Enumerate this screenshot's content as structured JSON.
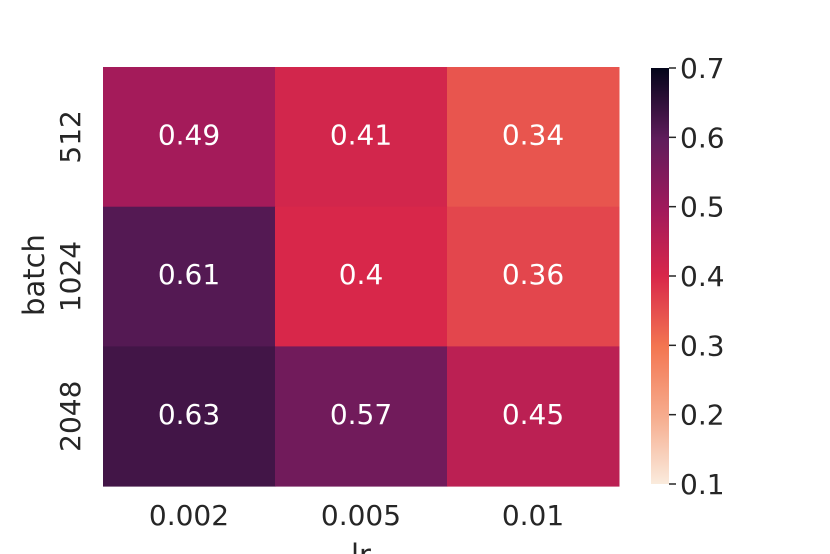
{
  "chart_data": {
    "type": "heatmap",
    "title": "",
    "xlabel": "lr",
    "ylabel": "batch",
    "x_categories": [
      "0.002",
      "0.005",
      "0.01"
    ],
    "y_categories": [
      "512",
      "1024",
      "2048"
    ],
    "values": [
      [
        0.49,
        0.41,
        0.34
      ],
      [
        0.61,
        0.4,
        0.36
      ],
      [
        0.63,
        0.57,
        0.45
      ]
    ],
    "value_labels": [
      [
        "0.49",
        "0.41",
        "0.34"
      ],
      [
        "0.61",
        "0.4",
        "0.36"
      ],
      [
        "0.63",
        "0.57",
        "0.45"
      ]
    ],
    "colorbar": {
      "range": [
        0.1,
        0.7
      ],
      "ticks": [
        "0.1",
        "0.2",
        "0.3",
        "0.4",
        "0.5",
        "0.6",
        "0.7"
      ],
      "colormap": "rocket_r"
    }
  }
}
